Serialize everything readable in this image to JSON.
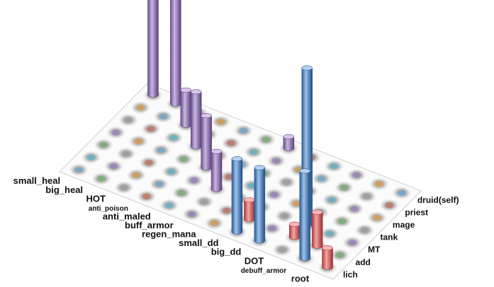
{
  "chart_data": {
    "type": "bar",
    "subtype": "3d-cylinder-grid",
    "title": "",
    "x_categories": [
      "small_heal",
      "big_heal",
      "HOT",
      "anti_poison",
      "anti_maled",
      "buff_armor",
      "regen_mana",
      "small_dd",
      "big_dd",
      "DOT",
      "debuff_armor",
      "root"
    ],
    "y_categories": [
      "druid(self)",
      "priest",
      "mage",
      "tank",
      "MT",
      "add",
      "lich"
    ],
    "grid": true,
    "bars": [
      {
        "x": "small_heal",
        "y": "druid(self)",
        "value": 9.0,
        "series": "purple"
      },
      {
        "x": "big_heal",
        "y": "druid(self)",
        "value": 16.5,
        "series": "purple"
      },
      {
        "x": "HOT",
        "y": "priest",
        "value": 2.7,
        "series": "purple"
      },
      {
        "x": "anti_poison",
        "y": "mage",
        "value": 4.2,
        "series": "purple"
      },
      {
        "x": "anti_maled",
        "y": "tank",
        "value": 4.0,
        "series": "purple"
      },
      {
        "x": "buff_armor",
        "y": "MT",
        "value": 2.9,
        "series": "purple"
      },
      {
        "x": "regen_mana",
        "y": "druid(self)",
        "value": 0.9,
        "series": "purple"
      },
      {
        "x": "small_dd",
        "y": "lich",
        "value": 5.6,
        "series": "blue"
      },
      {
        "x": "small_dd",
        "y": "add",
        "value": 1.5,
        "series": "red"
      },
      {
        "x": "big_dd",
        "y": "lich",
        "value": 5.6,
        "series": "blue"
      },
      {
        "x": "DOT",
        "y": "add",
        "value": 1.0,
        "series": "red"
      },
      {
        "x": "DOT",
        "y": "MT",
        "value": 12.0,
        "series": "blue"
      },
      {
        "x": "debuff_armor",
        "y": "add",
        "value": 2.6,
        "series": "red"
      },
      {
        "x": "debuff_armor",
        "y": "lich",
        "value": 6.7,
        "series": "blue"
      },
      {
        "x": "root",
        "y": "lich",
        "value": 1.5,
        "series": "red"
      }
    ],
    "colors": {
      "purple": "#9b7fb8",
      "blue": "#4f86c6",
      "red": "#e05a5a"
    }
  }
}
